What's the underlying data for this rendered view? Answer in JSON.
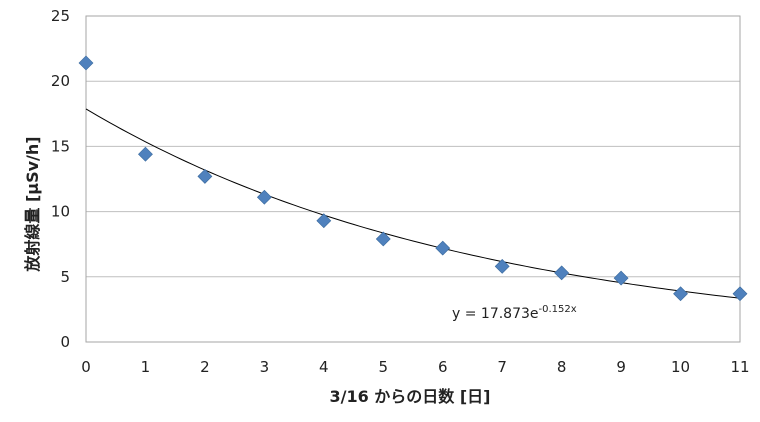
{
  "chart_data": {
    "type": "scatter",
    "title": "",
    "xlabel": "3/16 からの日数 [日]",
    "ylabel": "放射線量 [μSv/h]",
    "xlim": [
      0,
      11
    ],
    "ylim": [
      0,
      25
    ],
    "x_ticks": [
      "0",
      "1",
      "2",
      "3",
      "4",
      "5",
      "6",
      "7",
      "8",
      "9",
      "10",
      "11"
    ],
    "y_ticks": [
      "0",
      "5",
      "10",
      "15",
      "20",
      "25"
    ],
    "grid": {
      "horizontal": true,
      "vertical": false
    },
    "series": [
      {
        "marker": "diamond",
        "color": "#4f81bd",
        "points": [
          {
            "x": 0,
            "y": 21.4
          },
          {
            "x": 1,
            "y": 14.4
          },
          {
            "x": 2,
            "y": 12.7
          },
          {
            "x": 3,
            "y": 11.1
          },
          {
            "x": 4,
            "y": 9.3
          },
          {
            "x": 5,
            "y": 7.9
          },
          {
            "x": 6,
            "y": 7.2
          },
          {
            "x": 7,
            "y": 5.8
          },
          {
            "x": 8,
            "y": 5.3
          },
          {
            "x": 9,
            "y": 4.9
          },
          {
            "x": 10,
            "y": 3.7
          },
          {
            "x": 11,
            "y": 3.7
          }
        ]
      }
    ],
    "trendline": {
      "type": "exponential",
      "a": 17.873,
      "b": -0.152,
      "color": "#000000",
      "label_base": "y = 17.873e",
      "label_exp": "-0.152x"
    }
  }
}
